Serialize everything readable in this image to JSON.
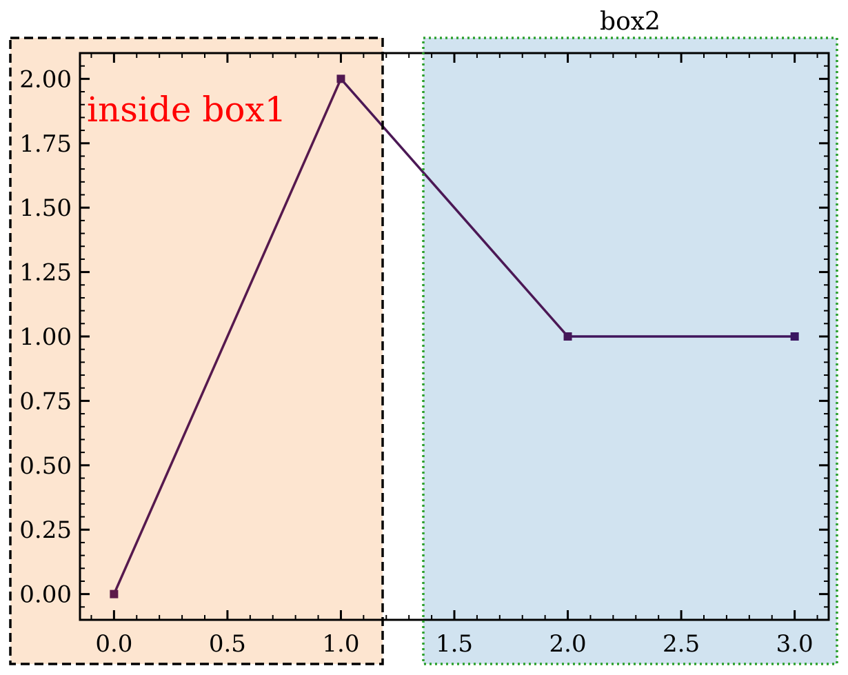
{
  "chart_data": {
    "type": "line",
    "x": [
      0,
      1,
      2,
      3
    ],
    "y": [
      0,
      2,
      1,
      1
    ],
    "xlim": [
      -0.15,
      3.15
    ],
    "ylim": [
      -0.1,
      2.1
    ],
    "x_ticks": [
      0.0,
      0.5,
      1.0,
      1.5,
      2.0,
      2.5,
      3.0
    ],
    "x_tick_labels": [
      "0.0",
      "0.5",
      "1.0",
      "1.5",
      "2.0",
      "2.5",
      "3.0"
    ],
    "y_ticks": [
      0.0,
      0.25,
      0.5,
      0.75,
      1.0,
      1.25,
      1.5,
      1.75,
      2.0
    ],
    "y_tick_labels": [
      "0.00",
      "0.25",
      "0.50",
      "0.75",
      "1.00",
      "1.25",
      "1.50",
      "1.75",
      "2.00"
    ],
    "marker": "square",
    "line_color_start": "#5c1a4a",
    "line_color_end": "#3a1560",
    "grid": false,
    "annotations": [
      {
        "text": "inside box1",
        "color": "#ff0000"
      }
    ],
    "boxes": [
      {
        "name": "box1",
        "label": "",
        "fill": "#fde5d0",
        "edge": "#000000",
        "style": "dashed"
      },
      {
        "name": "box2",
        "label": "box2",
        "fill": "#d1e3f0",
        "edge": "#2ca02c",
        "style": "dotted"
      }
    ]
  }
}
